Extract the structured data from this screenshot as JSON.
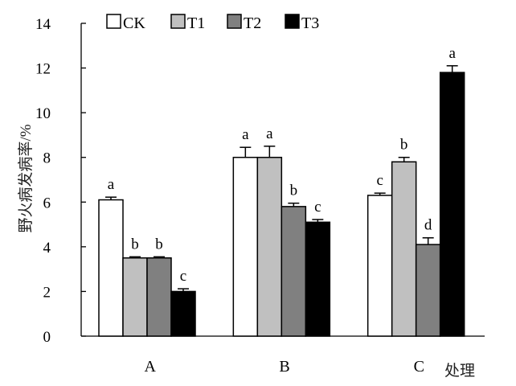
{
  "chart_data": {
    "type": "bar",
    "xlabel": "处理",
    "ylabel": "野火病发病率/%",
    "ylim": [
      0,
      14
    ],
    "yticks": [
      0,
      2,
      4,
      6,
      8,
      10,
      12,
      14
    ],
    "categories": [
      "A",
      "B",
      "C"
    ],
    "legend_position": "top-left",
    "grid": false,
    "series": [
      {
        "name": "CK",
        "color": "#ffffff",
        "values": [
          6.1,
          8.0,
          6.3
        ],
        "errors": [
          0.12,
          0.45,
          0.1
        ],
        "labels": [
          "a",
          "a",
          "c"
        ]
      },
      {
        "name": "T1",
        "color": "#c0c0c0",
        "values": [
          3.5,
          8.0,
          7.8
        ],
        "errors": [
          0.05,
          0.5,
          0.2
        ],
        "labels": [
          "b",
          "a",
          "b"
        ]
      },
      {
        "name": "T2",
        "color": "#808080",
        "values": [
          3.5,
          5.8,
          4.1
        ],
        "errors": [
          0.05,
          0.15,
          0.3
        ],
        "labels": [
          "b",
          "b",
          "d"
        ]
      },
      {
        "name": "T3",
        "color": "#000000",
        "values": [
          2.0,
          5.1,
          11.8
        ],
        "errors": [
          0.12,
          0.12,
          0.3
        ],
        "labels": [
          "c",
          "c",
          "a"
        ]
      }
    ]
  }
}
